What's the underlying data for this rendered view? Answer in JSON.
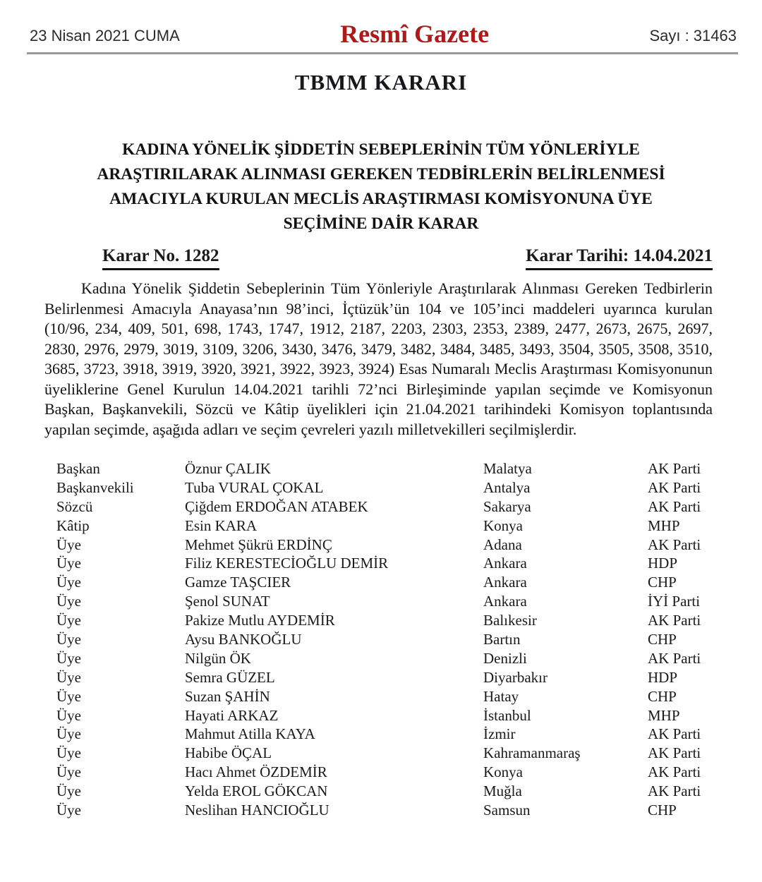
{
  "header": {
    "date": "23 Nisan 2021 CUMA",
    "gazette_title": "Resmî Gazete",
    "issue": "Sayı : 31463",
    "gazette_title_color": "#b0191a"
  },
  "document": {
    "kind": "TBMM KARARI",
    "title_lines": [
      "KADINA YÖNELİK ŞİDDETİN SEBEPLERİNİN TÜM YÖNLERİYLE",
      "ARAŞTIRILARAK ALINMASI GEREKEN TEDBİRLERİN BELİRLENMESİ",
      "AMACIYLA KURULAN MECLİS ARAŞTIRMASI KOMİSYONUNA ÜYE",
      "SEÇİMİNE DAİR KARAR"
    ],
    "decision_no": "Karar No. 1282",
    "decision_date": "Karar Tarihi: 14.04.2021",
    "body": "Kadına Yönelik Şiddetin Sebeplerinin Tüm Yönleriyle Araştırılarak Alınması Gereken Tedbirlerin Belirlenmesi Amacıyla Anayasa’nın 98’inci, İçtüzük’ün 104 ve 105’inci maddeleri uyarınca kurulan (10/96, 234, 409, 501, 698, 1743, 1747, 1912, 2187, 2203, 2303, 2353, 2389, 2477, 2673, 2675, 2697, 2830, 2976, 2979, 3019, 3109, 3206, 3430, 3476, 3479, 3482, 3484, 3485, 3493, 3504, 3505, 3508, 3510, 3685, 3723, 3918, 3919, 3920, 3921, 3922, 3923, 3924) Esas Numaralı Meclis Araştırması Komisyonunun üyeliklerine Genel Kurulun 14.04.2021 tarihli 72’nci Birleşiminde yapılan seçimde ve Komisyonun Başkan, Başkanvekili, Sözcü ve Kâtip üyelikleri için 21.04.2021 tarihindeki Komisyon toplantısında yapılan seçimde, aşağıda adları ve seçim çevreleri yazılı milletvekilleri seçilmişlerdir."
  },
  "members": [
    {
      "role": "Başkan",
      "name": "Öznur ÇALIK",
      "city": "Malatya",
      "party": "AK Parti"
    },
    {
      "role": "Başkanvekili",
      "name": "Tuba VURAL ÇOKAL",
      "city": "Antalya",
      "party": "AK Parti"
    },
    {
      "role": "Sözcü",
      "name": "Çiğdem ERDOĞAN ATABEK",
      "city": "Sakarya",
      "party": "AK Parti"
    },
    {
      "role": "Kâtip",
      "name": "Esin KARA",
      "city": "Konya",
      "party": "MHP"
    },
    {
      "role": "Üye",
      "name": "Mehmet Şükrü ERDİNÇ",
      "city": "Adana",
      "party": "AK Parti"
    },
    {
      "role": "Üye",
      "name": "Filiz KERESTECİOĞLU DEMİR",
      "city": "Ankara",
      "party": "HDP"
    },
    {
      "role": "Üye",
      "name": "Gamze TAŞCIER",
      "city": "Ankara",
      "party": "CHP"
    },
    {
      "role": "Üye",
      "name": "Şenol SUNAT",
      "city": "Ankara",
      "party": "İYİ Parti"
    },
    {
      "role": "Üye",
      "name": "Pakize Mutlu AYDEMİR",
      "city": "Balıkesir",
      "party": "AK Parti"
    },
    {
      "role": "Üye",
      "name": "Aysu BANKOĞLU",
      "city": "Bartın",
      "party": "CHP"
    },
    {
      "role": "Üye",
      "name": "Nilgün ÖK",
      "city": "Denizli",
      "party": "AK Parti"
    },
    {
      "role": "Üye",
      "name": "Semra GÜZEL",
      "city": "Diyarbakır",
      "party": "HDP"
    },
    {
      "role": "Üye",
      "name": "Suzan ŞAHİN",
      "city": "Hatay",
      "party": "CHP"
    },
    {
      "role": "Üye",
      "name": "Hayati ARKAZ",
      "city": "İstanbul",
      "party": "MHP"
    },
    {
      "role": "Üye",
      "name": "Mahmut Atilla KAYA",
      "city": "İzmir",
      "party": "AK Parti"
    },
    {
      "role": "Üye",
      "name": "Habibe ÖÇAL",
      "city": "Kahramanmaraş",
      "party": "AK Parti"
    },
    {
      "role": "Üye",
      "name": "Hacı Ahmet ÖZDEMİR",
      "city": "Konya",
      "party": "AK Parti"
    },
    {
      "role": "Üye",
      "name": "Yelda EROL GÖKCAN",
      "city": "Muğla",
      "party": "AK Parti"
    },
    {
      "role": "Üye",
      "name": "Neslihan HANCIOĞLU",
      "city": "Samsun",
      "party": "CHP"
    }
  ]
}
